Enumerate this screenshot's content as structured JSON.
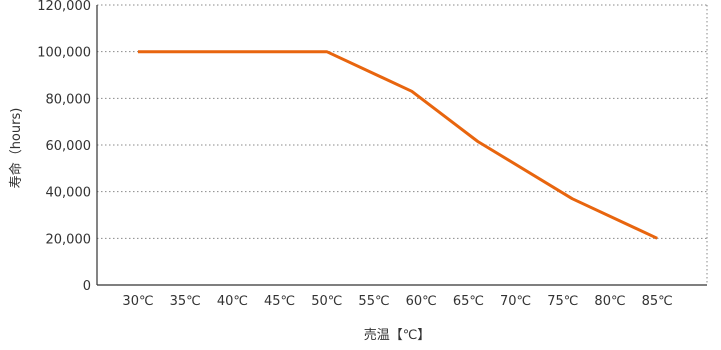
{
  "chart_data": {
    "type": "line",
    "title": "",
    "xlabel": "売温【℃】",
    "ylabel": "寿命（hours)",
    "categories": [
      "30℃",
      "35℃",
      "40℃",
      "45℃",
      "50℃",
      "55℃",
      "60℃",
      "65℃",
      "70℃",
      "75℃",
      "80℃",
      "85℃"
    ],
    "y_ticks": [
      "0",
      "20,000",
      "40,000",
      "60,000",
      "80,000",
      "100,000",
      "120,000"
    ],
    "ylim": [
      0,
      120000
    ],
    "grid": true,
    "legend": "none",
    "series": [
      {
        "color": "#E8650E",
        "points": [
          {
            "x": 30,
            "y": 100000
          },
          {
            "x": 50,
            "y": 100000
          },
          {
            "x": 59,
            "y": 83000
          },
          {
            "x": 66,
            "y": 61500
          },
          {
            "x": 76,
            "y": 37000
          },
          {
            "x": 85,
            "y": 20000
          }
        ]
      }
    ]
  }
}
